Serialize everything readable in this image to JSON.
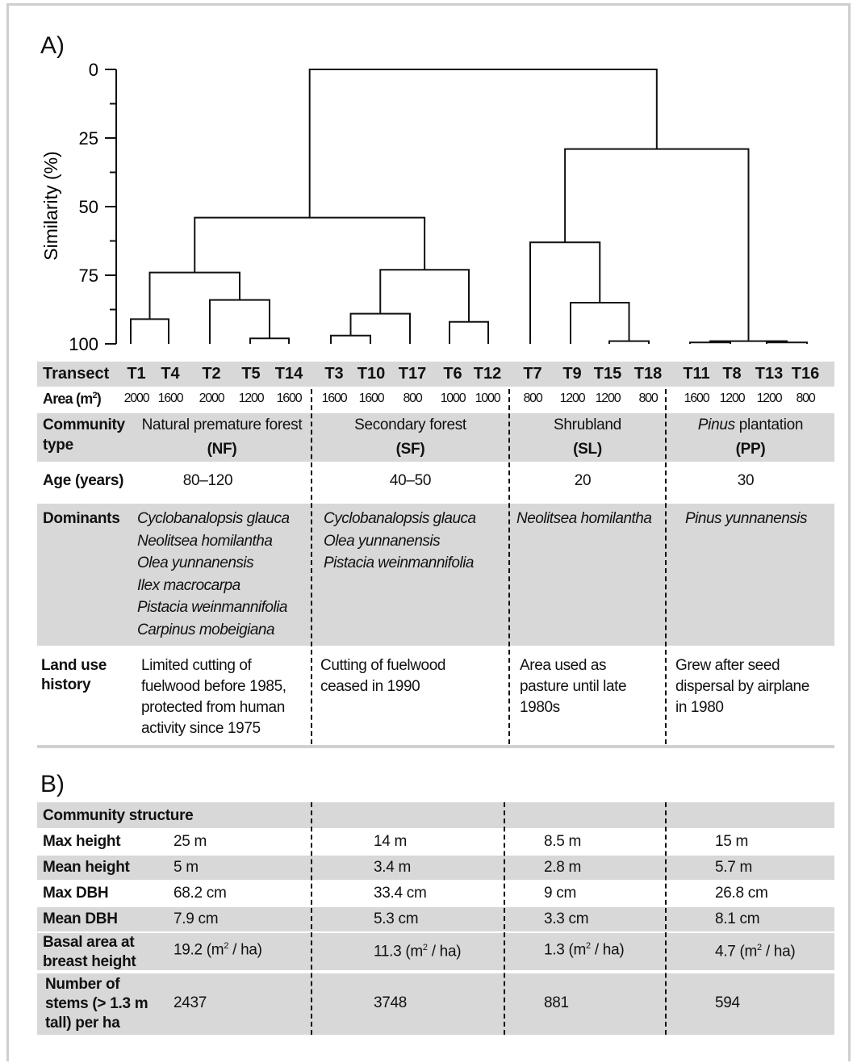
{
  "panel_a_label": "A)",
  "panel_b_label": "B)",
  "chart_data": {
    "type": "dendrogram",
    "ylabel": "Similarity (%)",
    "ylim": [
      0,
      100
    ],
    "yticks": [
      0,
      25,
      50,
      75,
      100
    ],
    "leaves": [
      "T1",
      "T4",
      "T2",
      "T5",
      "T14",
      "T3",
      "T10",
      "T17",
      "T6",
      "T12",
      "T7",
      "T9",
      "T15",
      "T18",
      "T11",
      "T8",
      "T13",
      "T16"
    ],
    "merges": [
      {
        "a": "T1",
        "b": "T4",
        "similarity": 91
      },
      {
        "a": "T5",
        "b": "T14",
        "similarity": 98
      },
      {
        "a": "T2",
        "b": "T5+T14",
        "similarity": 84
      },
      {
        "a": "T1+T4",
        "b": "T2+T5+T14",
        "similarity": 74
      },
      {
        "a": "T3",
        "b": "T10",
        "similarity": 97
      },
      {
        "a": "T3+T10",
        "b": "T17",
        "similarity": 89
      },
      {
        "a": "T6",
        "b": "T12",
        "similarity": 92
      },
      {
        "a": "T3+T10+T17",
        "b": "T6+T12",
        "similarity": 73
      },
      {
        "a": "NF",
        "b": "SF",
        "similarity": 54
      },
      {
        "a": "T15",
        "b": "T18",
        "similarity": 99
      },
      {
        "a": "T9",
        "b": "T15+T18",
        "similarity": 85
      },
      {
        "a": "T7",
        "b": "T9+T15+T18",
        "similarity": 63
      },
      {
        "a": "T11",
        "b": "T8",
        "similarity": 99.5
      },
      {
        "a": "T13",
        "b": "T16",
        "similarity": 99.5
      },
      {
        "a": "T11+T8",
        "b": "T13+T16",
        "similarity": 99
      },
      {
        "a": "SL",
        "b": "PP",
        "similarity": 29
      },
      {
        "a": "NF+SF",
        "b": "SL+PP",
        "similarity": 0
      }
    ]
  },
  "table_a": {
    "transect_label": "Transect",
    "transects": [
      "T1",
      "T4",
      "T2",
      "T5",
      "T14",
      "T3",
      "T10",
      "T17",
      "T6",
      "T12",
      "T7",
      "T9",
      "T15",
      "T18",
      "T11",
      "T8",
      "T13",
      "T16"
    ],
    "area_label": "Area (m",
    "area_sup": "2",
    "area_close": ")",
    "areas": [
      "2000",
      "1600",
      "2000",
      "1200",
      "1600",
      "1600",
      "1600",
      "800",
      "1000",
      "1000",
      "800",
      "1200",
      "1200",
      "800",
      "1600",
      "1200",
      "1200",
      "800"
    ],
    "community_label_1": "Community",
    "community_label_2": "type",
    "communities": [
      {
        "name": "Natural premature forest",
        "abbr": "(NF)"
      },
      {
        "name": "Secondary forest",
        "abbr": "(SF)"
      },
      {
        "name": "Shrubland",
        "abbr": "(SL)"
      },
      {
        "name_italic": "Pinus",
        "name": " plantation",
        "abbr": "(PP)"
      }
    ],
    "age_label": "Age (years)",
    "ages": [
      "80–120",
      "40–50",
      "20",
      "30"
    ],
    "dominants_label": "Dominants",
    "dominants": [
      [
        "Cyclobanalopsis glauca",
        "Neolitsea homilantha",
        "Olea yunnanensis",
        "Ilex macrocarpa",
        "Pistacia weinmannifolia",
        "Carpinus mobeigiana"
      ],
      [
        "Cyclobanalopsis glauca",
        "Olea yunnanensis",
        "Pistacia weinmannifolia"
      ],
      [
        "Neolitsea homilantha"
      ],
      [
        "Pinus yunnanensis"
      ]
    ],
    "landuse_label_1": "Land use",
    "landuse_label_2": "history",
    "landuse": [
      [
        "Limited cutting of",
        "fuelwood before 1985,",
        "protected from human",
        "activity since 1975"
      ],
      [
        "Cutting of fuelwood",
        "ceased in 1990"
      ],
      [
        "Area used as",
        "pasture until late",
        "1980s"
      ],
      [
        "Grew after seed",
        "dispersal by airplane",
        "in 1980"
      ]
    ]
  },
  "table_b": {
    "section_title": "Community structure",
    "rows": [
      {
        "label": "Max height",
        "values": [
          "25 m",
          "14 m",
          "8.5 m",
          "15 m"
        ]
      },
      {
        "label": "Mean height",
        "values": [
          "5 m",
          "3.4 m",
          "2.8 m",
          "5.7 m"
        ]
      },
      {
        "label": "Max DBH",
        "values": [
          "68.2 cm",
          "33.4 cm",
          "9 cm",
          "26.8 cm"
        ]
      },
      {
        "label": "Mean DBH",
        "values": [
          "7.9 cm",
          "5.3 cm",
          "3.3 cm",
          "8.1 cm"
        ]
      }
    ],
    "basal_label_1": "Basal area at",
    "basal_label_2": "breast height",
    "basal_values": [
      "19.2",
      "11.3",
      "1.3",
      "4.7"
    ],
    "basal_unit_pre": " (m",
    "basal_unit_sup": "2",
    "basal_unit_post": " / ha)",
    "stems_label_1": "Number of",
    "stems_label_2": "stems (> 1.3 m",
    "stems_label_3": "tall) per ha",
    "stems_values": [
      "2437",
      "3748",
      "881",
      "594"
    ]
  }
}
